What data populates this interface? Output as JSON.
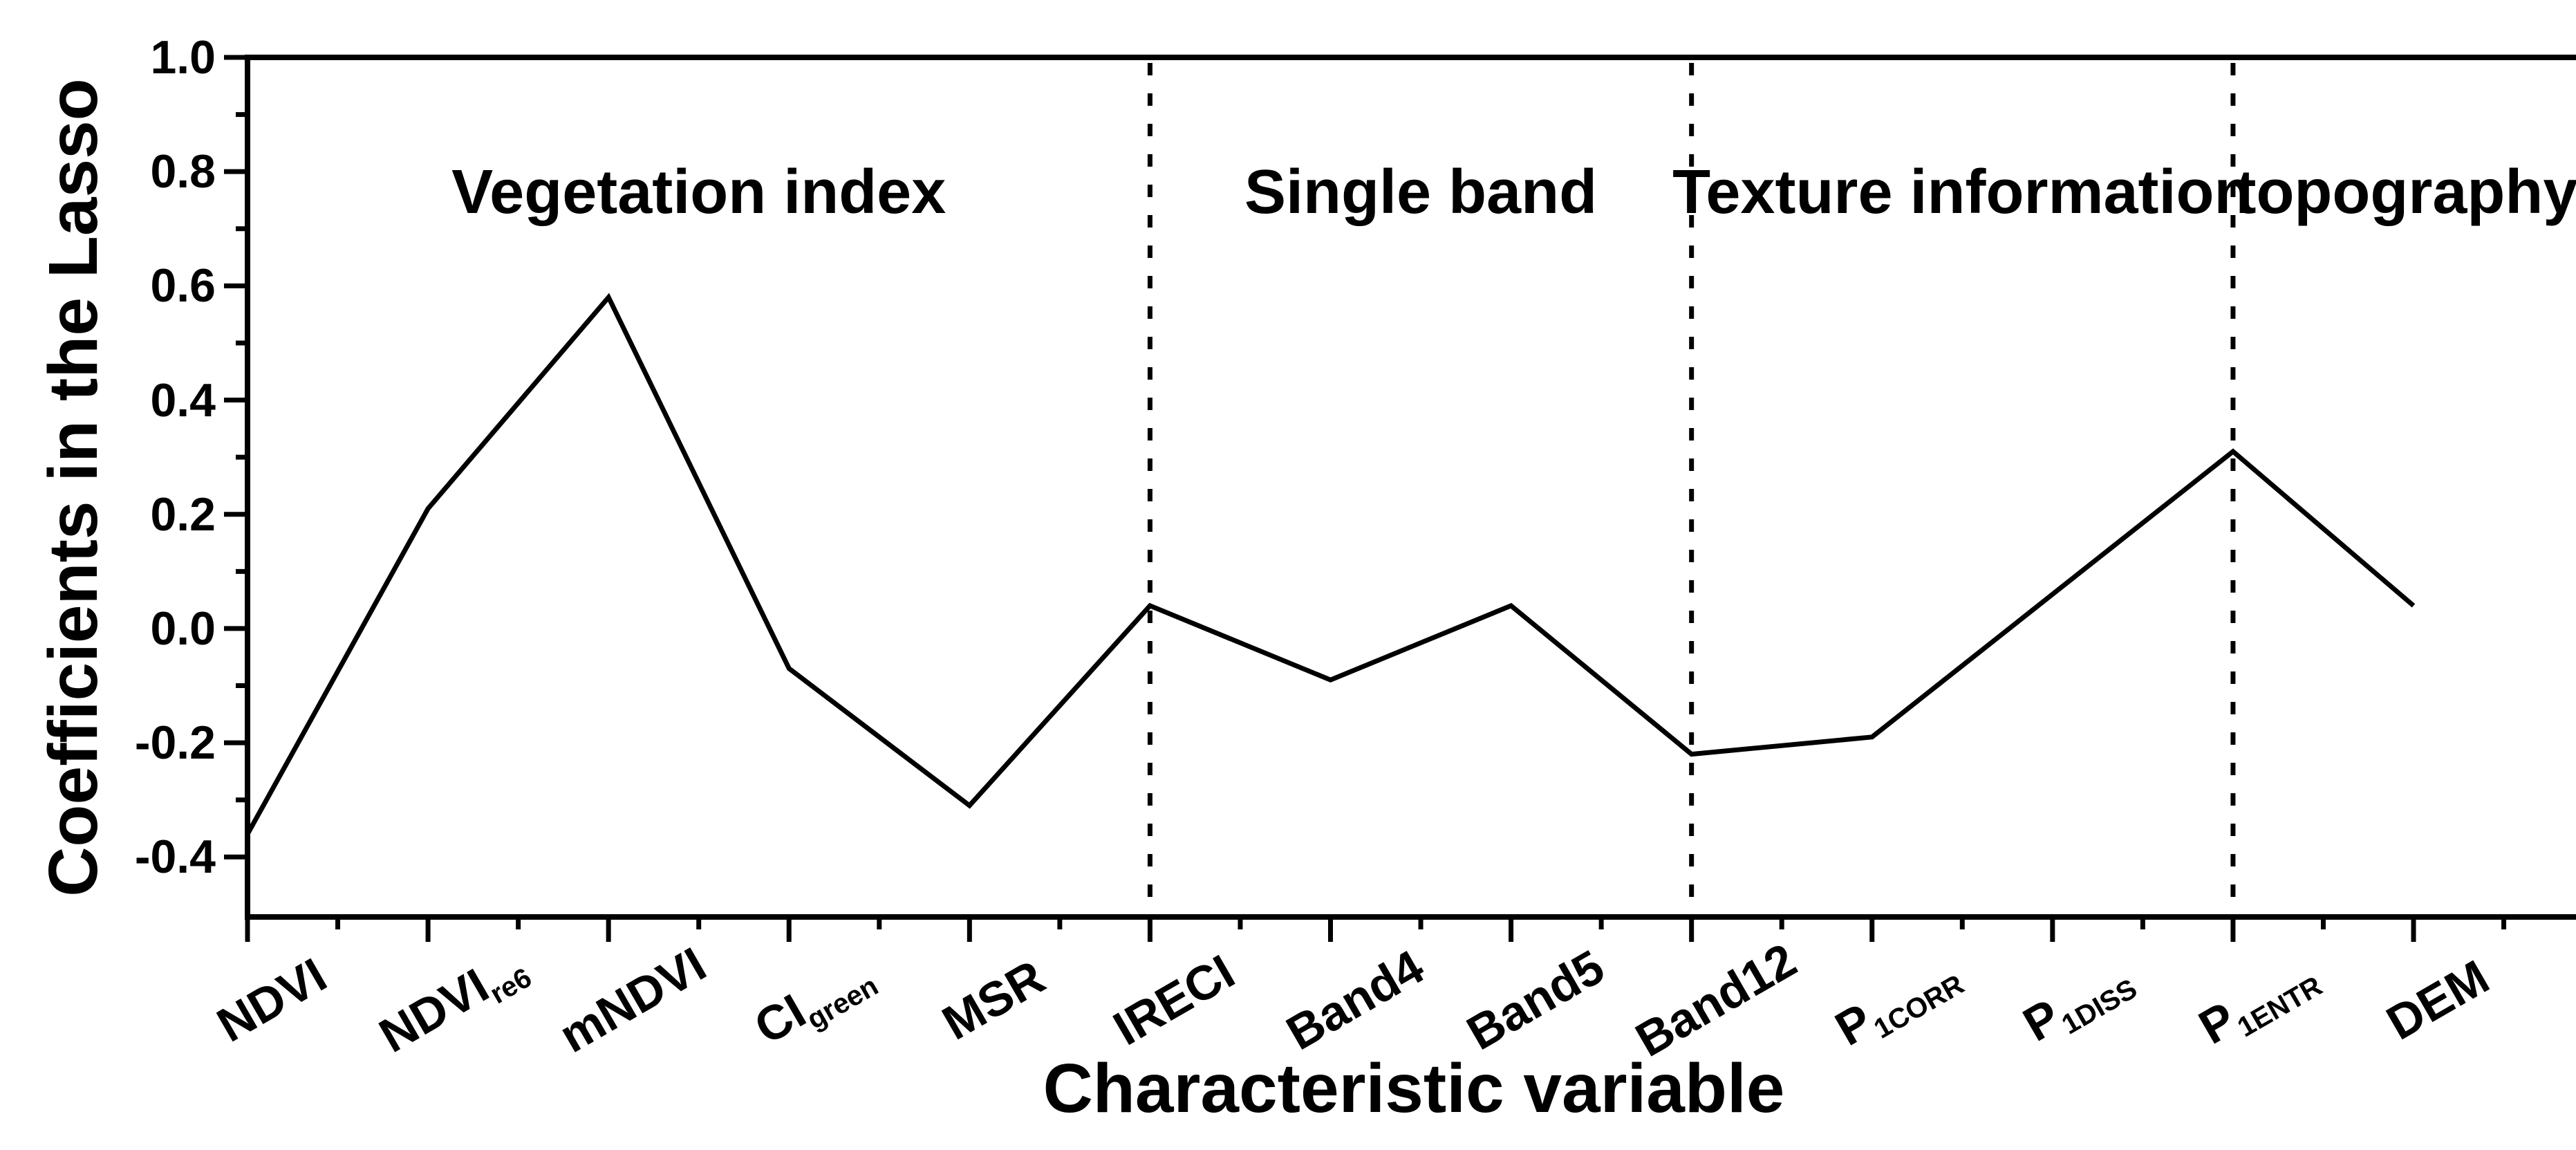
{
  "figure": {
    "background": "#ffffff",
    "ink": "#000000"
  },
  "chart_data": {
    "type": "line",
    "title": "",
    "xlabel": "Characteristic variable",
    "ylabel": "Coefficients in the Lasso",
    "categories": [
      {
        "text": "NDVI",
        "sub": ""
      },
      {
        "text": "NDVI",
        "sub": "re6"
      },
      {
        "text": "mNDVI",
        "sub": ""
      },
      {
        "text": "CI",
        "sub": "green"
      },
      {
        "text": "MSR",
        "sub": ""
      },
      {
        "text": "IRECI",
        "sub": ""
      },
      {
        "text": "Band4",
        "sub": ""
      },
      {
        "text": "Band5",
        "sub": ""
      },
      {
        "text": "Band12",
        "sub": ""
      },
      {
        "text": "P",
        "sub": "1CORR"
      },
      {
        "text": "P",
        "sub": "1DISS"
      },
      {
        "text": "P",
        "sub": "1ENTR"
      },
      {
        "text": "DEM",
        "sub": ""
      }
    ],
    "values": [
      -0.36,
      0.21,
      0.58,
      -0.07,
      -0.31,
      0.04,
      -0.09,
      0.04,
      -0.22,
      -0.19,
      0.06,
      0.31,
      0.04
    ],
    "ylim": [
      -0.505,
      1.0
    ],
    "yticks": [
      1.0,
      0.8,
      0.6,
      0.4,
      0.2,
      0.0,
      -0.2,
      -0.4
    ],
    "ytick_labels": [
      "1.0",
      "0.8",
      "0.6",
      "0.4",
      "0.2",
      "0.0",
      "-0.2",
      "-0.4"
    ],
    "y_minor_ticks": [
      0.9,
      0.7,
      0.5,
      0.3,
      0.1,
      -0.1,
      -0.3
    ],
    "sections": [
      {
        "label": "Vegetation index",
        "start_category": 0,
        "end_category": 5
      },
      {
        "label": "Single band",
        "start_category": 5,
        "end_category": 8
      },
      {
        "label": "Texture information",
        "start_category": 8,
        "end_category": 11
      },
      {
        "label": "topography",
        "start_category": 11,
        "end_category": 13
      }
    ],
    "divider_categories": [
      5,
      8,
      11
    ],
    "divider_style": "dotted",
    "grid": false,
    "legend": null,
    "line_color": "#000000"
  }
}
